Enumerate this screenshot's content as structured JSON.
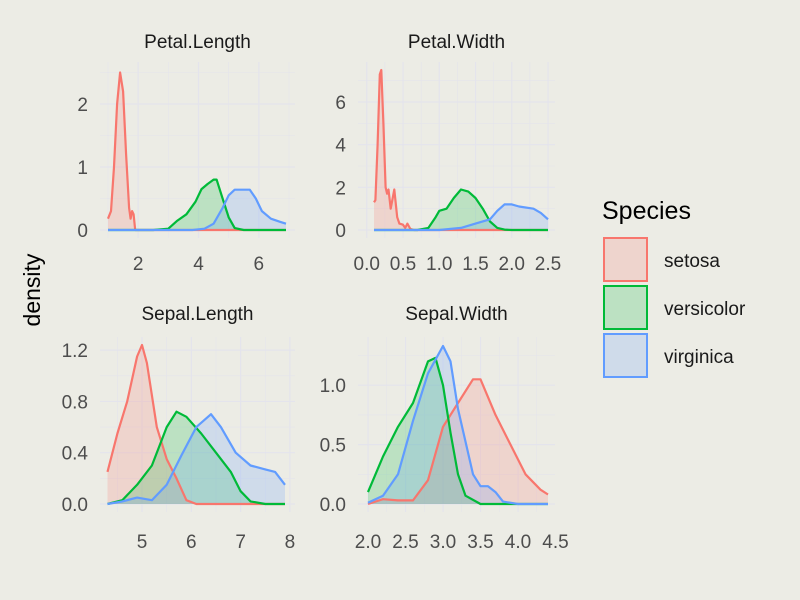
{
  "chart_data": {
    "type": "area",
    "ylabel": "density",
    "legend": {
      "title": "Species",
      "position": "right",
      "entries": [
        "setosa",
        "versicolor",
        "virginica"
      ]
    },
    "colors": {
      "setosa": "#F8766D",
      "versicolor": "#00BA38",
      "virginica": "#619CFF"
    },
    "fill_alpha": 0.2,
    "grid": true,
    "panels": [
      {
        "title": "Petal.Length",
        "xlim": [
          1.0,
          6.9
        ],
        "ylim": [
          0,
          2.5
        ],
        "xticks": [
          2,
          4,
          6
        ],
        "xtick_labels": [
          "2",
          "4",
          "6"
        ],
        "yticks": [
          0,
          1,
          2
        ],
        "ytick_labels": [
          "0",
          "1",
          "2"
        ],
        "series": [
          {
            "name": "setosa",
            "points": [
              [
                1.0,
                0.18
              ],
              [
                1.1,
                0.3
              ],
              [
                1.2,
                1.0
              ],
              [
                1.3,
                2.0
              ],
              [
                1.4,
                2.5
              ],
              [
                1.5,
                2.2
              ],
              [
                1.6,
                1.2
              ],
              [
                1.7,
                0.35
              ],
              [
                1.75,
                0.18
              ],
              [
                1.8,
                0.3
              ],
              [
                1.85,
                0.25
              ],
              [
                1.9,
                0.0
              ],
              [
                6.9,
                0.0
              ]
            ]
          },
          {
            "name": "versicolor",
            "points": [
              [
                1.0,
                0
              ],
              [
                2.5,
                0
              ],
              [
                3.0,
                0.02
              ],
              [
                3.3,
                0.15
              ],
              [
                3.6,
                0.25
              ],
              [
                3.9,
                0.45
              ],
              [
                4.1,
                0.65
              ],
              [
                4.3,
                0.73
              ],
              [
                4.5,
                0.8
              ],
              [
                4.6,
                0.8
              ],
              [
                4.8,
                0.5
              ],
              [
                5.0,
                0.2
              ],
              [
                5.2,
                0.03
              ],
              [
                5.5,
                0
              ],
              [
                6.9,
                0
              ]
            ]
          },
          {
            "name": "virginica",
            "points": [
              [
                1.0,
                0
              ],
              [
                3.8,
                0
              ],
              [
                4.2,
                0.02
              ],
              [
                4.5,
                0.1
              ],
              [
                4.8,
                0.35
              ],
              [
                5.0,
                0.55
              ],
              [
                5.2,
                0.64
              ],
              [
                5.5,
                0.64
              ],
              [
                5.7,
                0.64
              ],
              [
                5.9,
                0.5
              ],
              [
                6.1,
                0.3
              ],
              [
                6.4,
                0.18
              ],
              [
                6.7,
                0.13
              ],
              [
                6.9,
                0.1
              ]
            ]
          }
        ]
      },
      {
        "title": "Petal.Width",
        "xlim": [
          0.1,
          2.5
        ],
        "ylim": [
          0,
          7.5
        ],
        "xticks": [
          0.0,
          0.5,
          1.0,
          1.5,
          2.0,
          2.5
        ],
        "xtick_labels": [
          "0.0",
          "0.5",
          "1.0",
          "1.5",
          "2.0",
          "2.5"
        ],
        "yticks": [
          0,
          2,
          4,
          6
        ],
        "ytick_labels": [
          "0",
          "2",
          "4",
          "6"
        ],
        "series": [
          {
            "name": "setosa",
            "points": [
              [
                0.1,
                1.3
              ],
              [
                0.12,
                1.4
              ],
              [
                0.15,
                4.0
              ],
              [
                0.18,
                7.3
              ],
              [
                0.2,
                7.5
              ],
              [
                0.23,
                5.0
              ],
              [
                0.26,
                2.0
              ],
              [
                0.28,
                1.7
              ],
              [
                0.3,
                1.9
              ],
              [
                0.33,
                1.0
              ],
              [
                0.38,
                1.9
              ],
              [
                0.42,
                0.6
              ],
              [
                0.45,
                0.3
              ],
              [
                0.5,
                0.25
              ],
              [
                0.53,
                0.1
              ],
              [
                0.56,
                0.3
              ],
              [
                0.6,
                0.05
              ],
              [
                0.65,
                0
              ],
              [
                2.5,
                0
              ]
            ]
          },
          {
            "name": "versicolor",
            "points": [
              [
                0.1,
                0
              ],
              [
                0.7,
                0
              ],
              [
                0.85,
                0.1
              ],
              [
                0.95,
                0.6
              ],
              [
                1.0,
                0.9
              ],
              [
                1.1,
                1.0
              ],
              [
                1.2,
                1.5
              ],
              [
                1.3,
                1.9
              ],
              [
                1.4,
                1.8
              ],
              [
                1.5,
                1.5
              ],
              [
                1.6,
                1.0
              ],
              [
                1.7,
                0.4
              ],
              [
                1.8,
                0.1
              ],
              [
                1.9,
                0.02
              ],
              [
                2.0,
                0
              ],
              [
                2.5,
                0
              ]
            ]
          },
          {
            "name": "virginica",
            "points": [
              [
                0.1,
                0
              ],
              [
                1.0,
                0
              ],
              [
                1.3,
                0.1
              ],
              [
                1.5,
                0.3
              ],
              [
                1.7,
                0.5
              ],
              [
                1.8,
                0.9
              ],
              [
                1.9,
                1.2
              ],
              [
                2.0,
                1.2
              ],
              [
                2.1,
                1.1
              ],
              [
                2.3,
                1.0
              ],
              [
                2.4,
                0.8
              ],
              [
                2.5,
                0.5
              ]
            ]
          }
        ]
      },
      {
        "title": "Sepal.Length",
        "xlim": [
          4.3,
          7.9
        ],
        "ylim": [
          0,
          1.24
        ],
        "xticks": [
          5,
          6,
          7,
          8
        ],
        "xtick_labels": [
          "5",
          "6",
          "7",
          "8"
        ],
        "yticks": [
          0,
          0.4,
          0.8,
          1.2
        ],
        "ytick_labels": [
          "0.0",
          "0.4",
          "0.8",
          "1.2"
        ],
        "series": [
          {
            "name": "setosa",
            "points": [
              [
                4.3,
                0.25
              ],
              [
                4.5,
                0.55
              ],
              [
                4.7,
                0.8
              ],
              [
                4.9,
                1.15
              ],
              [
                5.0,
                1.24
              ],
              [
                5.1,
                1.1
              ],
              [
                5.3,
                0.6
              ],
              [
                5.5,
                0.35
              ],
              [
                5.7,
                0.2
              ],
              [
                5.9,
                0.03
              ],
              [
                6.1,
                0
              ],
              [
                7.9,
                0
              ]
            ]
          },
          {
            "name": "versicolor",
            "points": [
              [
                4.3,
                0
              ],
              [
                4.6,
                0.03
              ],
              [
                4.9,
                0.15
              ],
              [
                5.2,
                0.3
              ],
              [
                5.5,
                0.6
              ],
              [
                5.7,
                0.72
              ],
              [
                5.9,
                0.68
              ],
              [
                6.2,
                0.55
              ],
              [
                6.5,
                0.4
              ],
              [
                6.8,
                0.25
              ],
              [
                7.0,
                0.1
              ],
              [
                7.2,
                0.02
              ],
              [
                7.5,
                0
              ],
              [
                7.9,
                0
              ]
            ]
          },
          {
            "name": "virginica",
            "points": [
              [
                4.3,
                0
              ],
              [
                4.6,
                0.02
              ],
              [
                4.9,
                0.05
              ],
              [
                5.2,
                0.03
              ],
              [
                5.5,
                0.15
              ],
              [
                5.8,
                0.38
              ],
              [
                6.1,
                0.6
              ],
              [
                6.4,
                0.7
              ],
              [
                6.6,
                0.6
              ],
              [
                6.9,
                0.4
              ],
              [
                7.2,
                0.3
              ],
              [
                7.5,
                0.27
              ],
              [
                7.7,
                0.25
              ],
              [
                7.9,
                0.15
              ]
            ]
          }
        ]
      },
      {
        "title": "Sepal.Width",
        "xlim": [
          2.0,
          4.4
        ],
        "ylim": [
          0,
          1.33
        ],
        "xticks": [
          2.0,
          2.5,
          3.0,
          3.5,
          4.0,
          4.5
        ],
        "xtick_labels": [
          "2.0",
          "2.5",
          "3.0",
          "3.5",
          "4.0",
          "4.5"
        ],
        "yticks": [
          0,
          0.5,
          1.0
        ],
        "ytick_labels": [
          "0.0",
          "0.5",
          "1.0"
        ],
        "series": [
          {
            "name": "setosa",
            "points": [
              [
                2.0,
                0
              ],
              [
                2.2,
                0.04
              ],
              [
                2.4,
                0.03
              ],
              [
                2.6,
                0.03
              ],
              [
                2.8,
                0.2
              ],
              [
                3.0,
                0.65
              ],
              [
                3.2,
                0.85
              ],
              [
                3.4,
                1.05
              ],
              [
                3.5,
                1.05
              ],
              [
                3.7,
                0.75
              ],
              [
                3.9,
                0.5
              ],
              [
                4.1,
                0.25
              ],
              [
                4.3,
                0.12
              ],
              [
                4.4,
                0.08
              ]
            ]
          },
          {
            "name": "versicolor",
            "points": [
              [
                2.0,
                0.1
              ],
              [
                2.2,
                0.4
              ],
              [
                2.4,
                0.65
              ],
              [
                2.6,
                0.85
              ],
              [
                2.8,
                1.2
              ],
              [
                2.9,
                1.23
              ],
              [
                3.0,
                1.0
              ],
              [
                3.1,
                0.6
              ],
              [
                3.2,
                0.25
              ],
              [
                3.3,
                0.07
              ],
              [
                3.5,
                0
              ],
              [
                4.4,
                0
              ]
            ]
          },
          {
            "name": "virginica",
            "points": [
              [
                2.0,
                0.01
              ],
              [
                2.2,
                0.07
              ],
              [
                2.4,
                0.25
              ],
              [
                2.6,
                0.7
              ],
              [
                2.8,
                1.1
              ],
              [
                3.0,
                1.33
              ],
              [
                3.1,
                1.2
              ],
              [
                3.2,
                0.8
              ],
              [
                3.4,
                0.25
              ],
              [
                3.5,
                0.15
              ],
              [
                3.6,
                0.15
              ],
              [
                3.7,
                0.1
              ],
              [
                3.8,
                0.02
              ],
              [
                4.0,
                0
              ],
              [
                4.4,
                0
              ]
            ]
          }
        ]
      }
    ]
  }
}
